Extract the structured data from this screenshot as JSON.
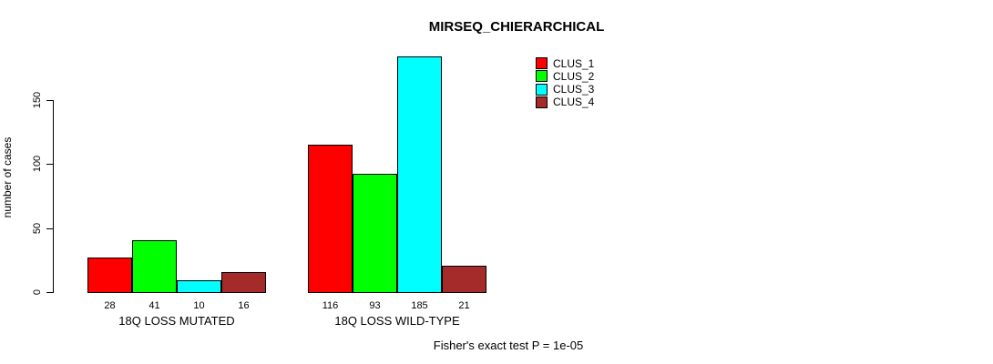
{
  "title": "MIRSEQ_CHIERARCHICAL",
  "footer_annotation": "Fisher's exact test P = 1e-05",
  "colors": {
    "clus_1": "#FF0000",
    "clus_2": "#00FF00",
    "clus_3": "#00FFFF",
    "clus_4": "#A52A2A",
    "axis": "#000000",
    "background": "#FFFFFF"
  },
  "chart_data": {
    "type": "bar",
    "title": "MIRSEQ_CHIERARCHICAL",
    "xlabel": "",
    "ylabel": "number of cases",
    "categories": [
      "18Q LOSS MUTATED",
      "18Q LOSS WILD-TYPE"
    ],
    "series": [
      {
        "name": "CLUS_1",
        "color": "#FF0000",
        "values": [
          28,
          116
        ]
      },
      {
        "name": "CLUS_2",
        "color": "#00FF00",
        "values": [
          41,
          93
        ]
      },
      {
        "name": "CLUS_3",
        "color": "#00FFFF",
        "values": [
          10,
          185
        ]
      },
      {
        "name": "CLUS_4",
        "color": "#A52A2A",
        "values": [
          16,
          21
        ]
      }
    ],
    "bar_value_labels": [
      [
        28,
        41,
        10,
        16
      ],
      [
        116,
        93,
        185,
        21
      ]
    ],
    "yticks": [
      0,
      50,
      100,
      150
    ],
    "ylim": [
      0,
      190
    ],
    "grid": false,
    "legend_position": "top-right",
    "annotation": "Fisher's exact test P = 1e-05"
  }
}
